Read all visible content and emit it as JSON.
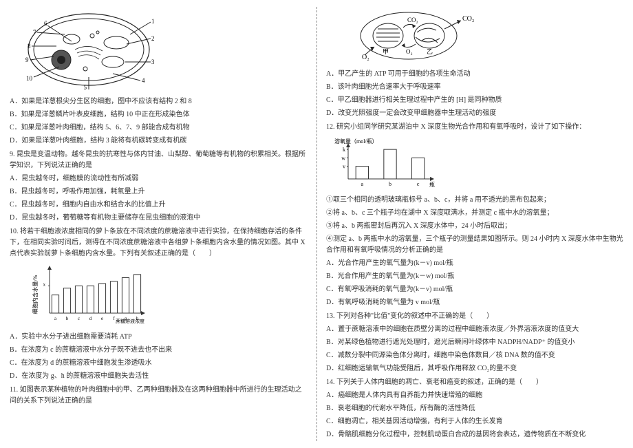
{
  "left": {
    "cell_diagram": {
      "labels": [
        "1",
        "2",
        "3",
        "4",
        "5",
        "6",
        "7",
        "8",
        "9",
        "10"
      ],
      "stroke": "#222222",
      "fill": "#ffffff",
      "width": 190,
      "height": 120
    },
    "q_optA": "A．如果是洋葱根尖分生区的细胞，图中不应该有结构 2 和 8",
    "q_optB": "B．如果是洋葱鳞片叶表皮细胞，结构 10 中正在形成染色体",
    "q_optC": "C．如果是洋葱叶肉细胞，结构 5、6、7、9 部能合成有机物",
    "q_optD": "D．如果是洋葱叶肉细胞，结构 3 能将有机碳转变成有机碳",
    "q9": "9. 昆虫是变温动物。越冬昆虫的抗寒性与体内甘油、山梨醇、葡萄糖等有机物的积累相关。根据所学知识，下列说法正确的是",
    "q9A": "A．昆虫越冬时，细胞膜的流动性有所减弱",
    "q9B": "B．昆虫越冬时，呼吸作用加强，耗氧量上升",
    "q9C": "C．昆虫越冬时，细胞内自由水和结合水的比值上升",
    "q9D": "D．昆虫越冬时，葡萄糖等有机物主要储存在昆虫细胞的液泡中",
    "q10": "10. 将若干细胞液浓度相同的萝卜条放在不同浓度的蔗糖溶液中进行实验，在保持细胞存活的条件下，在相同实验时间后，测得在不同浓度蔗糖溶液中各组萝卜条细胞内含水量的情况如图。其中 X 点代表实验前萝卜条细胞内含水量。下列有关叙述正确的是（　　）",
    "bar_chart": {
      "type": "bar",
      "categories": [
        "a",
        "b",
        "c",
        "d",
        "e",
        "f",
        "g",
        "h"
      ],
      "values": [
        40,
        55,
        60,
        60,
        65,
        70,
        78,
        85
      ],
      "bar_color": "#ffffff",
      "border_color": "#333333",
      "x_label": "蔗糖溶液浓度",
      "y_label": "细胞内含水量/%",
      "width": 170,
      "height": 90
    },
    "q10A": "A．实验中水分子进出细胞需要消耗 ATP",
    "q10B": "B．在浓度为 c 的蔗糖溶液中水分子既不进去也不出来",
    "q10C": "C．在浓度为 d 的蔗糖溶液中细胞发生渗透吸水",
    "q10D": "D．在浓度为 g、h 的蔗糖溶液中细胞失去活性",
    "q11": "11. 如图表示某种植物的叶肉细胞中的甲、乙两种细胞器及在这两种细胞器中所进行的生理活动之间的关系下列说法正确的是"
  },
  "right": {
    "organelle_diagram": {
      "labels": {
        "co2_up": "CO₂",
        "co2_right": "CO₂",
        "o2_left": "O₂",
        "o2_down": "O₂",
        "jia": "甲",
        "yi": "乙"
      },
      "stroke": "#222222",
      "width": 170,
      "height": 80
    },
    "r_optA": "A．甲乙产生的 ATP 可用于细胞的各项生命活动",
    "r_optB": "B．该叶肉细胞光合速率大于呼吸速率",
    "r_optC": "C．甲乙细胞器进行相关生理过程中产生的 [H] 是同种物质",
    "r_optD": "D．改变光照强度一定会改变甲细胞器中生理活动的强度",
    "q12": "12. 研究小组同学研究某湖泊中 X 深度生物光合作用和有氧呼吸时，设计了如下操作：",
    "small_bar": {
      "type": "bar",
      "y_label": "溶氧量（mol/瓶）",
      "categories": [
        "a",
        "b",
        "c"
      ],
      "values": [
        30,
        70,
        50
      ],
      "x_label_suffix": "瓶",
      "y_ticks": [
        "k",
        "w",
        "v"
      ],
      "bar_color": "#ffffff",
      "border_color": "#333333",
      "width": 130,
      "height": 70
    },
    "step1": "①取三个相同的透明玻璃瓶标号 a、b、c，并将 a 用不透光的黑布包起来；",
    "step2": "②将 a、b、c 三个瓶子均在湖中 X 深度取满水，并测定 c 瓶中水的溶氧量；",
    "step3": "③将 a、b 两瓶密封后再沉入 X 深度水体中，24 小时后取出；",
    "step4": "④测定 a、b 两瓶中水的溶氧量，三个瓶子的测量结果如图所示。则 24 小时内 X 深度水体中生物光合作用和有氧呼吸情况的分析正确的是",
    "q12A": "A．光合作用产生的氧气量为(k－v) mol/瓶",
    "q12B": "B．光合作用产生的氧气量为(k－w) mol/瓶",
    "q12C": "C．有氧呼吸消耗的氧气量为(k－v) mol/瓶",
    "q12D": "D．有氧呼吸消耗的氧气量为 v mol/瓶",
    "q13": "13. 下列对各种\"比值\"变化的叙述中不正确的是（　　）",
    "q13A": "A．置于蔗糖溶液中的细胞在质壁分离的过程中细胞液浓度／外界溶液浓度的值变大",
    "q13B": "B．对某绿色植物进行遮光处理时，遮光后瞬间叶绿体中 NADPH/NADP⁺ 的值变小",
    "q13C": "C．减数分裂中同源染色体分离时，细胞中染色体数目／核 DNA 数的值不变",
    "q13D": "D．红细胞运输氧气功能受阻后，其呼吸作用释放 CO₂的量不变",
    "q14": "14. 下列关于人体内细胞的凋亡、衰老和癌变的叙述，正确的是（　　）",
    "q14A": "A．癌细胞是人体内具有自养能力并快速增殖的细胞",
    "q14B": "B．衰老细胞的代谢水平降低，所有酶的活性降低",
    "q14C": "C．细胞凋亡，相关基因活动增强，有利于人体的生长发育",
    "q14D": "D．骨骼肌细胞分化过程中，控制肌动蛋白合成的基因将会表达，遗传物质在不断变化"
  }
}
